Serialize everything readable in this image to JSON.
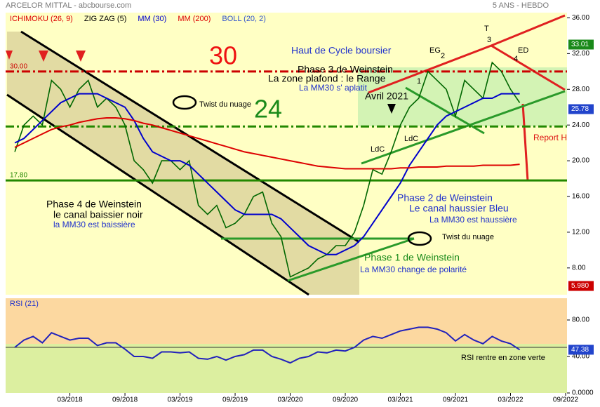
{
  "header": {
    "title": "ARCELOR MITTAL - abcbourse.com",
    "period": "5 ANS - HEBDO"
  },
  "chart_data": [
    {
      "type": "line",
      "log_scale": false,
      "indicators": [
        {
          "name": "ICHIMOKU (26, 9)",
          "color": "#dd0000"
        },
        {
          "name": "ZIG ZAG (5)",
          "color": "#000000"
        },
        {
          "name": "MM (30)",
          "color": "#0000cc"
        },
        {
          "name": "MM (200)",
          "color": "#dd0000"
        },
        {
          "name": "BOLL (20, 2)",
          "color": "#3355cc"
        }
      ],
      "x": [
        "09/2017",
        "10/2017",
        "11/2017",
        "12/2017",
        "01/2018",
        "02/2018",
        "03/2018",
        "04/2018",
        "05/2018",
        "06/2018",
        "07/2018",
        "08/2018",
        "09/2018",
        "10/2018",
        "11/2018",
        "12/2018",
        "01/2019",
        "02/2019",
        "03/2019",
        "04/2019",
        "05/2019",
        "06/2019",
        "07/2019",
        "08/2019",
        "09/2019",
        "10/2019",
        "11/2019",
        "12/2019",
        "01/2020",
        "02/2020",
        "03/2020",
        "04/2020",
        "05/2020",
        "06/2020",
        "07/2020",
        "08/2020",
        "09/2020",
        "10/2020",
        "11/2020",
        "12/2020",
        "01/2021",
        "02/2021",
        "03/2021",
        "04/2021",
        "05/2021",
        "06/2021",
        "07/2021",
        "08/2021",
        "09/2021",
        "10/2021",
        "11/2021",
        "12/2021",
        "01/2022",
        "02/2022",
        "03/2022",
        "04/2022"
      ],
      "series": [
        {
          "name": "Cours",
          "color": "#006600",
          "values": [
            21,
            24,
            25,
            24,
            29,
            28,
            26,
            28,
            29,
            26,
            27,
            26,
            24,
            20,
            19,
            17.5,
            20,
            20,
            19,
            20,
            15,
            14,
            15,
            12.5,
            13,
            14,
            16,
            16.5,
            13,
            11.5,
            7,
            7.5,
            8,
            9,
            9.5,
            10.5,
            10.5,
            12,
            15,
            19,
            18.5,
            21,
            24,
            26,
            27,
            30,
            29,
            28,
            25,
            29,
            28,
            27,
            31,
            30,
            28,
            26.5
          ]
        },
        {
          "name": "MM (30)",
          "color": "#0000cc",
          "values": [
            22,
            22.5,
            23.5,
            24.5,
            25.5,
            26.5,
            27,
            27.5,
            27.5,
            27.5,
            27,
            26.5,
            26,
            24.5,
            22.5,
            21,
            20.5,
            20,
            20,
            19.5,
            18.5,
            17.5,
            16.5,
            15.5,
            14.5,
            14,
            14,
            14,
            14,
            13.5,
            12.5,
            11.5,
            10.5,
            10,
            9.5,
            9.5,
            10,
            10.5,
            11.5,
            13,
            14.5,
            16,
            17.5,
            19.5,
            21,
            22.5,
            24,
            25,
            25.5,
            26,
            26.5,
            27,
            27,
            27.5,
            27.5,
            27.5
          ]
        },
        {
          "name": "MM (200)",
          "color": "#dd0000",
          "values": [
            21.5,
            22,
            22.5,
            23,
            23.5,
            23.8,
            24,
            24.3,
            24.5,
            24.7,
            24.8,
            24.8,
            24.7,
            24.5,
            24.2,
            24,
            23.7,
            23.4,
            23.1,
            22.8,
            22.5,
            22.2,
            21.9,
            21.6,
            21.3,
            21,
            20.8,
            20.6,
            20.4,
            20.2,
            20,
            19.8,
            19.6,
            19.4,
            19.3,
            19.2,
            19.1,
            19.1,
            19.1,
            19.1,
            19.1,
            19.1,
            19.2,
            19.2,
            19.3,
            19.3,
            19.3,
            19.4,
            19.4,
            19.4,
            19.4,
            19.5,
            19.5,
            19.5,
            19.5,
            19.6
          ]
        }
      ],
      "xlim": [
        "08/2017",
        "09/2022"
      ],
      "xticks": [
        "03/2018",
        "09/2018",
        "03/2019",
        "09/2019",
        "03/2020",
        "09/2020",
        "03/2021",
        "09/2021",
        "03/2022",
        "09/2022"
      ],
      "ylim": [
        5,
        38
      ],
      "yticks": [
        {
          "value": 8,
          "label": "8.00"
        },
        {
          "value": 12,
          "label": "12.00"
        },
        {
          "value": 16,
          "label": "16.00"
        },
        {
          "value": 20,
          "label": "20.00"
        },
        {
          "value": 24,
          "label": "24.00"
        },
        {
          "value": 28,
          "label": "28.00"
        },
        {
          "value": 32,
          "label": "32.00"
        },
        {
          "value": 36,
          "label": "36.00"
        }
      ],
      "levels": [
        {
          "value": 30,
          "label": "30.00",
          "color": "#cc0000"
        },
        {
          "value": 23.84,
          "color": "#228800"
        },
        {
          "value": 17.8,
          "label": "17.80",
          "color": "#228800"
        }
      ],
      "last_labels": [
        {
          "value": 33.01,
          "label": "33.01",
          "color": "#1a8a1a"
        },
        {
          "value": 25.78,
          "label": "25.78",
          "color": "#2244cc"
        },
        {
          "value": 5.98,
          "label": "5.980",
          "color": "#cc0000"
        }
      ],
      "annotations": [
        "Haut de Cycle boursier",
        "Phase 3 de Weinstein",
        "La zone plafond : le Range",
        "La MM30 s' aplatit",
        "Avril 2021",
        "30",
        "24",
        "Twist du nuage",
        "Phase 4 de Weinstein",
        "le canal baissier noir",
        "la MM30 est baissière",
        "Phase 2 de Weinstein",
        "Le canal haussier Bleu",
        "La MM30 est haussière",
        "Phase 1 de Weinstein",
        "La MM30 change de polarité",
        "Twist du nuage",
        "Report H",
        "LdC",
        "LdC",
        "EG",
        "2",
        "T",
        "3",
        "ED",
        "4",
        "1"
      ]
    },
    {
      "type": "line",
      "title": "RSI (21)",
      "series": [
        {
          "name": "RSI (21)",
          "color": "#2222bb",
          "values": [
            50,
            58,
            62,
            55,
            66,
            62,
            58,
            60,
            60,
            52,
            55,
            55,
            48,
            40,
            40,
            38,
            45,
            45,
            44,
            45,
            38,
            37,
            40,
            36,
            40,
            42,
            47,
            47,
            40,
            37,
            33,
            38,
            40,
            45,
            44,
            47,
            46,
            50,
            58,
            62,
            60,
            64,
            68,
            70,
            72,
            72,
            70,
            66,
            57,
            64,
            58,
            54,
            62,
            57,
            54,
            47.38
          ]
        }
      ],
      "ylim": [
        0,
        100
      ],
      "yticks": [
        {
          "value": 0,
          "label": "0.0000"
        },
        {
          "value": 40,
          "label": "40.00"
        },
        {
          "value": 80,
          "label": "80.00"
        }
      ],
      "threshold": 50,
      "last_labels": [
        {
          "value": 47.38,
          "label": "47.38",
          "color": "#2244cc"
        }
      ],
      "annotations": [
        "RSI rentre en zone verte"
      ]
    }
  ]
}
